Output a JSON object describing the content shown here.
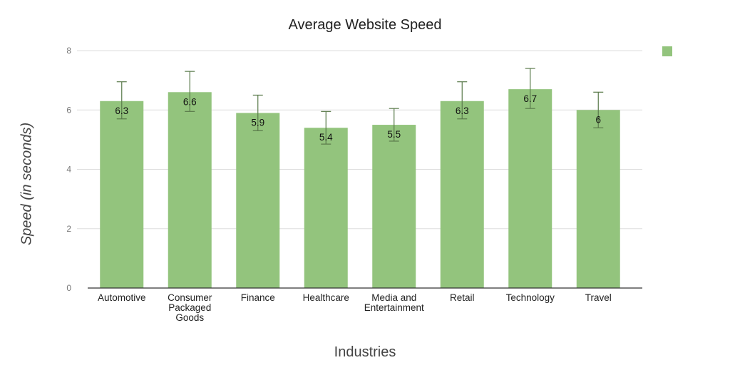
{
  "chart_data": {
    "type": "bar",
    "title": "Average Website Speed",
    "xlabel": "Industries",
    "ylabel": "Speed (in seconds)",
    "categories": [
      [
        "Automotive"
      ],
      [
        "Consumer",
        "Packaged",
        "Goods"
      ],
      [
        "Finance"
      ],
      [
        "Healthcare"
      ],
      [
        "Media and",
        "Entertainment"
      ],
      [
        "Retail"
      ],
      [
        "Technology"
      ],
      [
        "Travel"
      ]
    ],
    "values": [
      6.3,
      6.6,
      5.9,
      5.4,
      5.5,
      6.3,
      6.7,
      6
    ],
    "error_low": [
      5.7,
      5.95,
      5.3,
      4.85,
      4.95,
      5.7,
      6.05,
      5.4
    ],
    "error_high": [
      6.95,
      7.3,
      6.5,
      5.95,
      6.05,
      6.95,
      7.4,
      6.6
    ],
    "ylim": [
      0,
      8
    ],
    "yticks": [
      0,
      2,
      4,
      6,
      8
    ],
    "grid": true,
    "legend": "top-right",
    "bar_color": "#93c47d",
    "error_color": "#5a7a4a"
  }
}
